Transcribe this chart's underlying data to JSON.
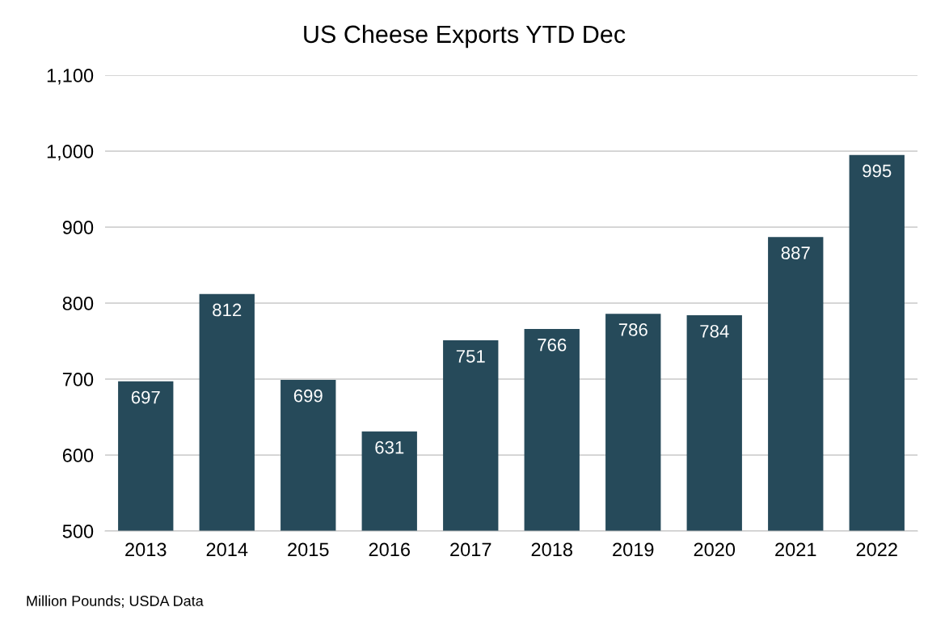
{
  "chart_data": {
    "type": "bar",
    "title": "US Cheese Exports YTD Dec",
    "categories": [
      "2013",
      "2014",
      "2015",
      "2016",
      "2017",
      "2018",
      "2019",
      "2020",
      "2021",
      "2022"
    ],
    "values": [
      697,
      812,
      699,
      631,
      751,
      766,
      786,
      784,
      887,
      995
    ],
    "color": "#264a5a",
    "ylim": [
      500,
      1100
    ],
    "yticks": [
      500,
      600,
      700,
      800,
      900,
      {
        "value": 1000,
        "label": "1,000"
      },
      {
        "value": 1100,
        "label": "1,100"
      }
    ],
    "grid": "y",
    "data_labels": true,
    "annotations": [
      "Million Pounds; USDA Data"
    ]
  }
}
